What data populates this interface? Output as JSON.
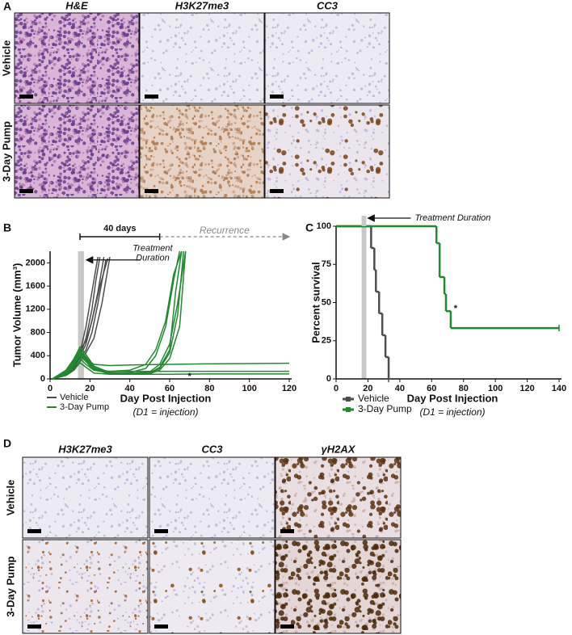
{
  "panels": [
    {
      "label": "A",
      "columns": [
        "H&E",
        "H3K27me3",
        "CC3"
      ],
      "rows": [
        "Vehicle",
        "3-Day Pump"
      ]
    },
    {
      "label": "D",
      "columns": [
        "H3K27me3",
        "CC3",
        "γH2AX"
      ],
      "rows": [
        "Vehicle",
        "3-Day Pump"
      ]
    }
  ],
  "chart_data": [
    {
      "type": "line",
      "panel_label": "B",
      "ylabel": "Tumor Volume (mm³)",
      "xlabel": "Day Post Injection",
      "subtitle": "(D1 = injection)",
      "xlim": [
        0,
        120
      ],
      "xticks": [
        0,
        20,
        40,
        60,
        80,
        100,
        120
      ],
      "ylim": [
        0,
        2200
      ],
      "yticks": [
        0,
        400,
        800,
        1200,
        1600,
        2000
      ],
      "treatment_window": [
        14,
        17
      ],
      "treatment_text": [
        "Treatment",
        "Duration"
      ],
      "annotations": [
        {
          "text": "40 days",
          "x": [
            15,
            55
          ]
        },
        {
          "text": "Recurrence",
          "x": [
            55,
            120
          ]
        }
      ],
      "marker_text": "*",
      "groups": [
        {
          "name": "Vehicle",
          "color": "#4d4d4d",
          "lines": [
            {
              "x": [
                1,
                8,
                12,
                15,
                18,
                21,
                24
              ],
              "values": [
                0,
                100,
                250,
                450,
                900,
                1500,
                2100
              ]
            },
            {
              "x": [
                1,
                8,
                12,
                15,
                18,
                21,
                23,
                25
              ],
              "values": [
                0,
                80,
                200,
                400,
                700,
                1200,
                1700,
                2100
              ]
            },
            {
              "x": [
                1,
                8,
                12,
                15,
                18,
                21,
                24,
                27
              ],
              "values": [
                0,
                90,
                220,
                380,
                600,
                1000,
                1500,
                2100
              ]
            },
            {
              "x": [
                1,
                8,
                12,
                15,
                18,
                21,
                24,
                28
              ],
              "values": [
                0,
                70,
                180,
                350,
                500,
                800,
                1300,
                2050
              ]
            },
            {
              "x": [
                1,
                8,
                12,
                15,
                18,
                22,
                26,
                30
              ],
              "values": [
                0,
                60,
                150,
                300,
                450,
                700,
                1300,
                2100
              ]
            },
            {
              "x": [
                1,
                8,
                12,
                15,
                18,
                21,
                25,
                29
              ],
              "values": [
                0,
                100,
                260,
                500,
                650,
                1000,
                1600,
                2080
              ]
            }
          ]
        },
        {
          "name": "3-Day Pump",
          "color": "#1f8a2e",
          "lines": [
            {
              "x": [
                1,
                8,
                12,
                15,
                18,
                22,
                30,
                40,
                50,
                55,
                60,
                64,
                68
              ],
              "values": [
                0,
                150,
                350,
                550,
                420,
                220,
                110,
                100,
                120,
                250,
                600,
                1300,
                2200
              ]
            },
            {
              "x": [
                1,
                8,
                12,
                15,
                18,
                22,
                30,
                40,
                50,
                55,
                60,
                64,
                67
              ],
              "values": [
                0,
                120,
                300,
                480,
                380,
                200,
                100,
                90,
                100,
                180,
                450,
                1100,
                2200
              ]
            },
            {
              "x": [
                1,
                8,
                12,
                15,
                18,
                22,
                30,
                40,
                50,
                55,
                60,
                65,
                68
              ],
              "values": [
                0,
                130,
                320,
                500,
                350,
                180,
                90,
                80,
                90,
                150,
                350,
                900,
                2200
              ]
            },
            {
              "x": [
                1,
                8,
                12,
                15,
                18,
                22,
                30,
                40,
                50,
                55,
                60,
                63,
                66
              ],
              "values": [
                0,
                100,
                280,
                450,
                330,
                170,
                80,
                80,
                100,
                200,
                500,
                1500,
                2200
              ]
            },
            {
              "x": [
                1,
                8,
                12,
                15,
                18,
                22,
                30,
                40,
                48,
                53,
                58,
                62,
                65
              ],
              "values": [
                0,
                140,
                300,
                420,
                300,
                150,
                100,
                110,
                180,
                400,
                900,
                1700,
                2200
              ]
            },
            {
              "x": [
                1,
                8,
                12,
                15,
                18,
                22,
                30,
                40,
                48,
                53,
                58,
                62,
                66
              ],
              "values": [
                0,
                90,
                250,
                400,
                300,
                160,
                130,
                150,
                250,
                500,
                1000,
                1800,
                2200
              ]
            },
            {
              "x": [
                1,
                8,
                12,
                15,
                18,
                22,
                30,
                40,
                60,
                80,
                100,
                120
              ],
              "values": [
                0,
                120,
                300,
                480,
                350,
                250,
                230,
                240,
                250,
                260,
                265,
                270
              ]
            },
            {
              "x": [
                1,
                8,
                12,
                15,
                18,
                22,
                30,
                40,
                60,
                80,
                100,
                120
              ],
              "values": [
                0,
                80,
                200,
                350,
                250,
                150,
                130,
                130,
                130,
                130,
                130,
                130
              ]
            },
            {
              "x": [
                1,
                8,
                12,
                15,
                18,
                22,
                30,
                40,
                60,
                80,
                100,
                120
              ],
              "values": [
                0,
                60,
                150,
                280,
                200,
                100,
                80,
                80,
                80,
                85,
                85,
                85
              ]
            }
          ]
        }
      ]
    },
    {
      "type": "step",
      "panel_label": "C",
      "ylabel": "Percent survival",
      "xlabel": "Day Post Injection",
      "subtitle": "(D1 = injection)",
      "xlim": [
        0,
        140
      ],
      "xticks": [
        0,
        20,
        40,
        60,
        80,
        100,
        120,
        140
      ],
      "ylim": [
        0,
        100
      ],
      "yticks": [
        0,
        25,
        50,
        75,
        100
      ],
      "treatment_window": [
        16,
        19
      ],
      "treatment_text": "Treatment Duration",
      "marker_text": "*",
      "series": [
        {
          "name": "Vehicle",
          "color": "#4d4d4d",
          "x": [
            0,
            22,
            24,
            25,
            27,
            29,
            31,
            33
          ],
          "values": [
            100,
            85.7,
            71.4,
            57.1,
            42.9,
            28.6,
            14.3,
            0
          ]
        },
        {
          "name": "3-Day Pump",
          "color": "#1f8a2e",
          "x": [
            0,
            63,
            65,
            68,
            69,
            72,
            140
          ],
          "values": [
            100,
            88.9,
            66.7,
            55.6,
            44.4,
            33.3,
            33.3
          ]
        }
      ]
    }
  ]
}
